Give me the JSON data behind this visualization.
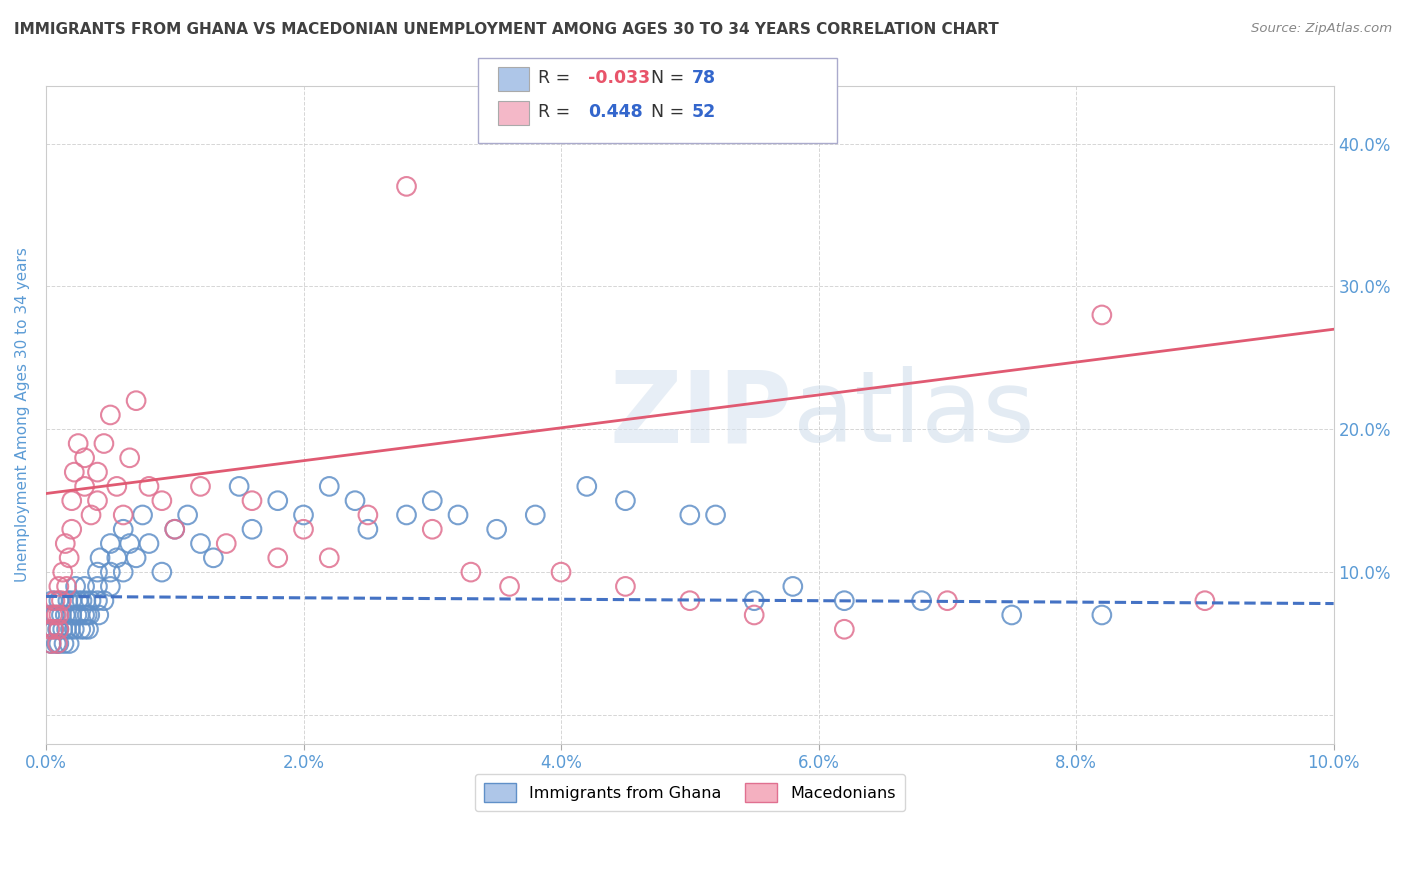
{
  "title": "IMMIGRANTS FROM GHANA VS MACEDONIAN UNEMPLOYMENT AMONG AGES 30 TO 34 YEARS CORRELATION CHART",
  "source": "Source: ZipAtlas.com",
  "ylabel": "Unemployment Among Ages 30 to 34 years",
  "xlim": [
    0.0,
    0.1
  ],
  "ylim": [
    -0.02,
    0.44
  ],
  "watermark_zip": "ZIP",
  "watermark_atlas": "atlas",
  "legend_entries": [
    {
      "label": "Immigrants from Ghana",
      "R": "-0.033",
      "N": "78",
      "color": "#aec6e8"
    },
    {
      "label": "Macedonians",
      "R": "0.448",
      "N": "52",
      "color": "#f4b8c8"
    }
  ],
  "ghana_scatter_x": [
    0.0003,
    0.0004,
    0.0005,
    0.0006,
    0.0007,
    0.0008,
    0.0009,
    0.001,
    0.001,
    0.001,
    0.0012,
    0.0013,
    0.0014,
    0.0015,
    0.0016,
    0.0017,
    0.0018,
    0.0019,
    0.002,
    0.002,
    0.0022,
    0.0023,
    0.0024,
    0.0025,
    0.0026,
    0.0027,
    0.0028,
    0.003,
    0.003,
    0.003,
    0.0031,
    0.0032,
    0.0033,
    0.0034,
    0.0035,
    0.004,
    0.004,
    0.004,
    0.0041,
    0.0042,
    0.0045,
    0.005,
    0.005,
    0.005,
    0.0055,
    0.006,
    0.006,
    0.0065,
    0.007,
    0.0075,
    0.008,
    0.009,
    0.01,
    0.011,
    0.012,
    0.013,
    0.015,
    0.016,
    0.018,
    0.02,
    0.022,
    0.024,
    0.025,
    0.028,
    0.03,
    0.032,
    0.035,
    0.038,
    0.042,
    0.045,
    0.05,
    0.052,
    0.055,
    0.058,
    0.062,
    0.068,
    0.075,
    0.082
  ],
  "ghana_scatter_y": [
    0.07,
    0.05,
    0.08,
    0.06,
    0.07,
    0.05,
    0.06,
    0.08,
    0.06,
    0.05,
    0.07,
    0.06,
    0.05,
    0.07,
    0.06,
    0.08,
    0.05,
    0.06,
    0.08,
    0.07,
    0.06,
    0.09,
    0.07,
    0.08,
    0.07,
    0.06,
    0.08,
    0.09,
    0.07,
    0.06,
    0.08,
    0.07,
    0.06,
    0.07,
    0.08,
    0.1,
    0.08,
    0.09,
    0.07,
    0.11,
    0.08,
    0.12,
    0.1,
    0.09,
    0.11,
    0.13,
    0.1,
    0.12,
    0.11,
    0.14,
    0.12,
    0.1,
    0.13,
    0.14,
    0.12,
    0.11,
    0.16,
    0.13,
    0.15,
    0.14,
    0.16,
    0.15,
    0.13,
    0.14,
    0.15,
    0.14,
    0.13,
    0.14,
    0.16,
    0.15,
    0.14,
    0.14,
    0.08,
    0.09,
    0.08,
    0.08,
    0.07,
    0.07
  ],
  "mac_scatter_x": [
    0.0003,
    0.0004,
    0.0005,
    0.0006,
    0.0007,
    0.0008,
    0.0009,
    0.001,
    0.001,
    0.001,
    0.0012,
    0.0013,
    0.0015,
    0.0016,
    0.0018,
    0.002,
    0.002,
    0.0022,
    0.0025,
    0.003,
    0.003,
    0.0035,
    0.004,
    0.004,
    0.0045,
    0.005,
    0.0055,
    0.006,
    0.0065,
    0.007,
    0.008,
    0.009,
    0.01,
    0.012,
    0.014,
    0.016,
    0.018,
    0.02,
    0.022,
    0.025,
    0.028,
    0.03,
    0.033,
    0.036,
    0.04,
    0.045,
    0.05,
    0.055,
    0.062,
    0.07,
    0.082,
    0.09
  ],
  "mac_scatter_y": [
    0.06,
    0.05,
    0.07,
    0.06,
    0.08,
    0.07,
    0.05,
    0.09,
    0.06,
    0.07,
    0.08,
    0.1,
    0.12,
    0.09,
    0.11,
    0.15,
    0.13,
    0.17,
    0.19,
    0.18,
    0.16,
    0.14,
    0.17,
    0.15,
    0.19,
    0.21,
    0.16,
    0.14,
    0.18,
    0.22,
    0.16,
    0.15,
    0.13,
    0.16,
    0.12,
    0.15,
    0.11,
    0.13,
    0.11,
    0.14,
    0.37,
    0.13,
    0.1,
    0.09,
    0.1,
    0.09,
    0.08,
    0.07,
    0.06,
    0.08,
    0.28,
    0.08
  ],
  "ghana_trend_x": [
    0.0,
    0.1
  ],
  "ghana_trend_y": [
    0.083,
    0.078
  ],
  "mac_trend_x": [
    0.0,
    0.1
  ],
  "mac_trend_y": [
    0.155,
    0.27
  ],
  "ghana_trend_color": "#4472c4",
  "mac_trend_color": "#e05a72",
  "bg_color": "#ffffff",
  "grid_color": "#cccccc",
  "title_color": "#404040",
  "axis_label_color": "#5b9bd5",
  "scatter_blue": "#aec6e8",
  "scatter_pink": "#f4b0c0",
  "scatter_blue_edge": "#6090c8",
  "scatter_pink_edge": "#e07090"
}
